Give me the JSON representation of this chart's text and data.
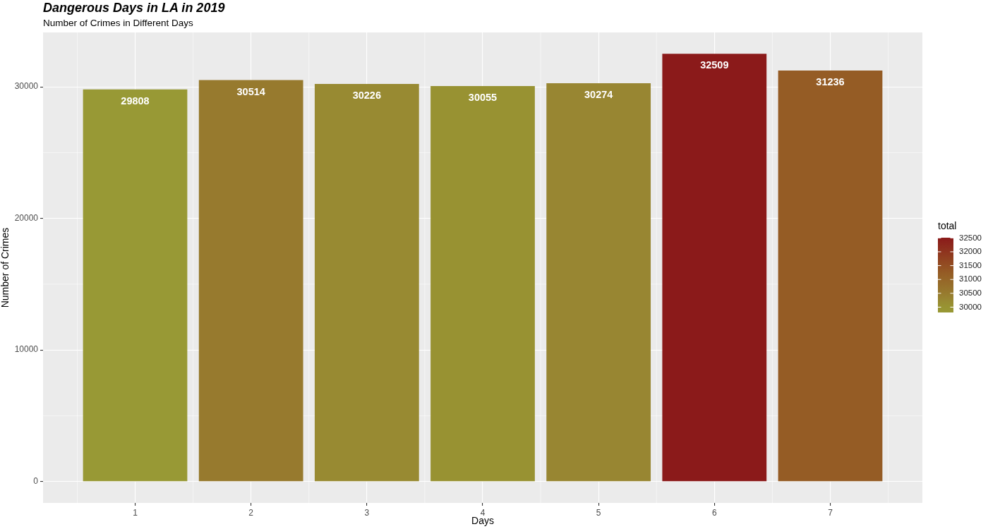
{
  "chart_data": {
    "type": "bar",
    "title": "Dangerous Days in LA in 2019",
    "subtitle": "Number of Crimes in Different Days",
    "xlabel": "Days",
    "ylabel": "Number of Crimes",
    "clabel": "total",
    "x": [
      1,
      2,
      3,
      4,
      5,
      6,
      7
    ],
    "values": [
      29808,
      30514,
      30226,
      30055,
      30274,
      32509,
      31236
    ],
    "colors": [
      "#989935",
      "#977a2e",
      "#988a32",
      "#989232",
      "#988632",
      "#8b1a1a",
      "#955c25"
    ],
    "xlim": [
      0.205,
      7.795
    ],
    "xticks": [
      1,
      2,
      3,
      4,
      5,
      6,
      7
    ],
    "ylim": [
      -1625,
      34134
    ],
    "yticks": [
      0,
      10000,
      20000,
      30000
    ],
    "clim": [
      29808,
      32509
    ],
    "cticks": [
      30000,
      30500,
      31000,
      31500,
      32000,
      32500
    ],
    "grid": true,
    "data_labels": true
  }
}
